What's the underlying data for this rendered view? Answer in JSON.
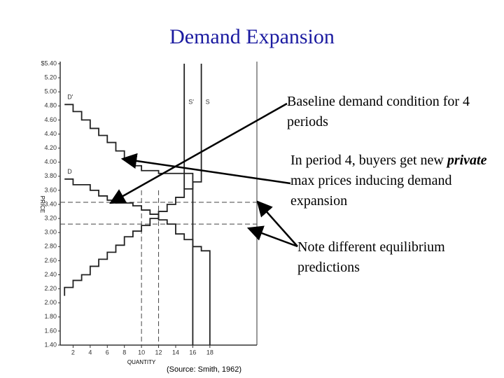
{
  "title": "Demand Expansion",
  "notes": [
    "Baseline demand condition for 4 periods",
    [
      "In period 4, buyers get new ",
      "private",
      " max prices inducing demand expansion"
    ],
    "Note different equilibrium predictions"
  ],
  "source": "(Source: Smith, 1962)",
  "chart_data": {
    "type": "line",
    "ylabel": "PRICE",
    "xlabel": "QUANTITY",
    "xlim": [
      0,
      23.5
    ],
    "ylim": [
      1.4,
      5.4
    ],
    "xticks": [
      2,
      4,
      6,
      8,
      10,
      12,
      14,
      16,
      18
    ],
    "yticks": [
      {
        "value": 1.4,
        "label": "1.40"
      },
      {
        "value": 1.6,
        "label": "1.60"
      },
      {
        "value": 1.8,
        "label": "1.80"
      },
      {
        "value": 2,
        "label": "2.00"
      },
      {
        "value": 2.2,
        "label": "2.20"
      },
      {
        "value": 2.4,
        "label": "2.40"
      },
      {
        "value": 2.6,
        "label": "2.60"
      },
      {
        "value": 2.8,
        "label": "2.80"
      },
      {
        "value": 3,
        "label": "3.00"
      },
      {
        "value": 3.2,
        "label": "3.20"
      },
      {
        "value": 3.4,
        "label": "3.40"
      },
      {
        "value": 3.6,
        "label": "3.60"
      },
      {
        "value": 3.8,
        "label": "3.80"
      },
      {
        "value": 4,
        "label": "4.00"
      },
      {
        "value": 4.2,
        "label": "4.20"
      },
      {
        "value": 4.4,
        "label": "4.40"
      },
      {
        "value": 4.6,
        "label": "4.60"
      },
      {
        "value": 4.8,
        "label": "4.80"
      },
      {
        "value": 5,
        "label": "5.00"
      },
      {
        "value": 5.2,
        "label": "5.20"
      },
      {
        "value": 5.4,
        "label": "$5.40"
      }
    ],
    "color": "#222",
    "series": [
      {
        "name": "D'",
        "x": [
          1,
          2,
          2,
          3,
          3,
          4,
          4,
          5,
          5,
          6,
          6,
          7,
          7,
          8,
          8,
          9,
          9,
          10,
          10,
          12,
          12,
          16,
          16
        ],
        "values": [
          4.82,
          4.82,
          4.72,
          4.72,
          4.6,
          4.6,
          4.48,
          4.48,
          4.38,
          4.38,
          4.28,
          4.28,
          4.16,
          4.16,
          4.05,
          4.05,
          3.95,
          3.95,
          3.88,
          3.88,
          3.84,
          3.84,
          1.4
        ]
      },
      {
        "name": "D",
        "x": [
          1,
          2,
          2,
          4,
          4,
          5,
          5,
          6,
          6,
          7,
          7,
          9,
          9,
          10,
          10,
          11,
          11,
          12,
          12,
          13,
          13,
          14,
          14,
          15,
          15,
          16,
          16,
          17,
          17,
          18,
          18
        ],
        "values": [
          3.76,
          3.76,
          3.68,
          3.68,
          3.6,
          3.6,
          3.52,
          3.52,
          3.46,
          3.46,
          3.42,
          3.42,
          3.38,
          3.38,
          3.32,
          3.32,
          3.26,
          3.26,
          3.18,
          3.18,
          3.12,
          3.12,
          2.98,
          2.98,
          2.9,
          2.9,
          2.8,
          2.8,
          2.74,
          2.74,
          1.4
        ]
      },
      {
        "name": "S",
        "x": [
          1,
          1,
          2,
          2,
          3,
          3,
          4,
          4,
          5,
          5,
          6,
          6,
          7,
          7,
          8,
          8,
          9,
          9,
          10,
          10,
          11,
          11,
          12,
          12,
          13,
          13,
          14,
          14,
          15,
          15,
          16,
          16,
          17,
          17
        ],
        "values": [
          2.1,
          2.22,
          2.22,
          2.32,
          2.32,
          2.4,
          2.4,
          2.52,
          2.52,
          2.62,
          2.62,
          2.72,
          2.72,
          2.82,
          2.82,
          2.94,
          2.94,
          3.02,
          3.02,
          3.1,
          3.1,
          3.2,
          3.2,
          3.3,
          3.3,
          3.4,
          3.4,
          3.5,
          3.5,
          3.62,
          3.62,
          3.72,
          3.72,
          5.4
        ]
      },
      {
        "name": "S'",
        "x": [
          15,
          15
        ],
        "values": [
          3.62,
          5.4
        ]
      }
    ],
    "hlines": [
      3.43,
      3.12
    ],
    "vlines": [
      10,
      12
    ]
  }
}
